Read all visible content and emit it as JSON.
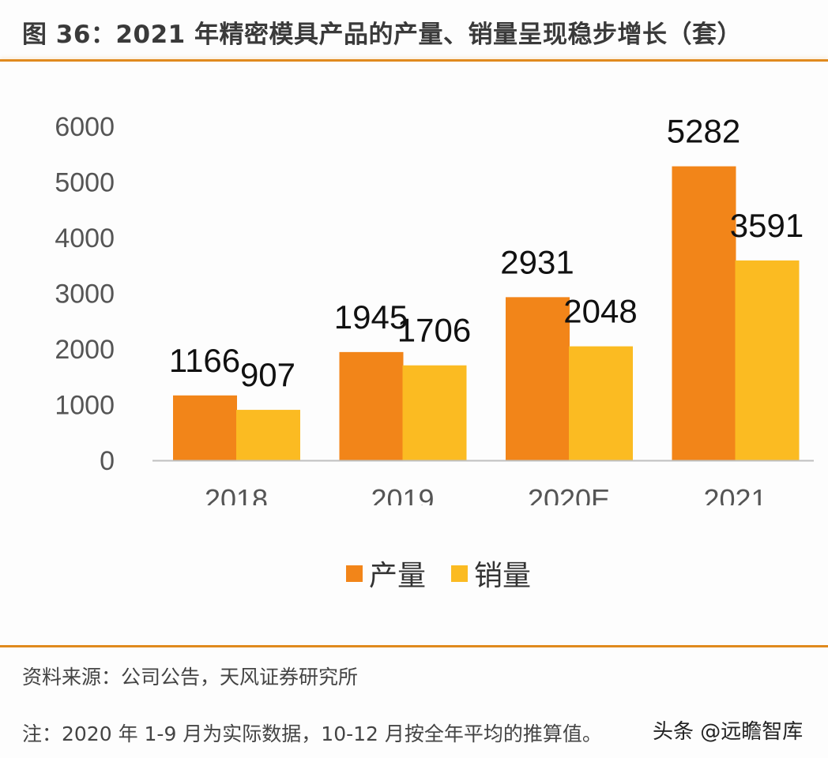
{
  "title": "图 36：2021 年精密模具产品的产量、销量呈现稳步增长（套）",
  "colors": {
    "accent_rule": "#e08a1e",
    "series_production": "#f28519",
    "series_sales": "#fbbb22",
    "axis": "#bfbfbf"
  },
  "chart_data": {
    "type": "bar",
    "title": "2021 年精密模具产品的产量、销量呈现稳步增长（套）",
    "categories": [
      "2018",
      "2019",
      "2020E",
      "2021"
    ],
    "series": [
      {
        "name": "产量",
        "values": [
          1166,
          1945,
          2931,
          5282
        ],
        "color": "#f28519"
      },
      {
        "name": "销量",
        "values": [
          907,
          1706,
          2048,
          3591
        ],
        "color": "#fbbb22"
      }
    ],
    "xlabel": "",
    "ylabel": "",
    "ylim": [
      0,
      6000
    ],
    "yticks": [
      "0",
      "1000",
      "2000",
      "3000",
      "4000",
      "5000",
      "6000"
    ],
    "grid": false,
    "legend": "bottom-center",
    "data_labels": true
  },
  "legend": [
    {
      "label": "产量",
      "color": "#f28519"
    },
    {
      "label": "销量",
      "color": "#fbbb22"
    }
  ],
  "footer": {
    "source": "资料来源：公司公告，天风证券研究所",
    "note": "注：2020 年 1-9 月为实际数据，10-12 月按全年平均的推算值。",
    "watermark": "头条 @远瞻智库"
  }
}
